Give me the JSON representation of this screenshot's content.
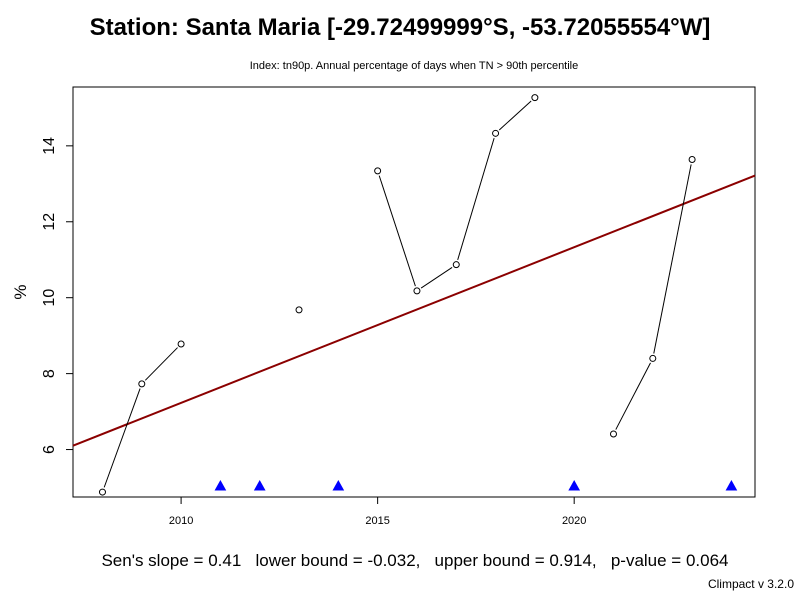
{
  "chart_data": {
    "type": "scatter",
    "title": "Station: Santa Maria [-29.72499999°S, -53.72055554°W]",
    "subtitle": "Index: tn90p. Annual percentage of days when TN > 90th percentile",
    "ylabel": "%",
    "xlabel": "",
    "xlim": [
      2007.25,
      2024.6
    ],
    "ylim": [
      4.75,
      15.55
    ],
    "x_ticks": [
      2010,
      2015,
      2020
    ],
    "y_ticks": [
      6,
      8,
      10,
      12,
      14
    ],
    "grid": false,
    "series": [
      {
        "x": [
          2008,
          2009,
          2010,
          2011,
          2012,
          2013,
          2014,
          2015,
          2016,
          2017,
          2018,
          2019,
          2020,
          2021,
          2022,
          2023,
          2024
        ],
        "values": [
          4.88,
          7.73,
          8.78,
          null,
          null,
          9.68,
          null,
          13.34,
          10.18,
          10.87,
          14.33,
          15.27,
          null,
          6.41,
          8.4,
          13.64,
          null
        ]
      }
    ],
    "missing_years": [
      2011,
      2012,
      2014,
      2020,
      2024
    ],
    "trend_line": {
      "slope": 0.41,
      "intercept": -816.87,
      "color": "#8b0000"
    },
    "colors": {
      "points": "#000000",
      "missing_marker": "#0000ff",
      "trend": "#8b0000"
    }
  },
  "footer": "Sen's slope = 0.41   lower bound = -0.032,   upper bound = 0.914,   p-value = 0.064",
  "credit": "Climpact v 3.2.0"
}
